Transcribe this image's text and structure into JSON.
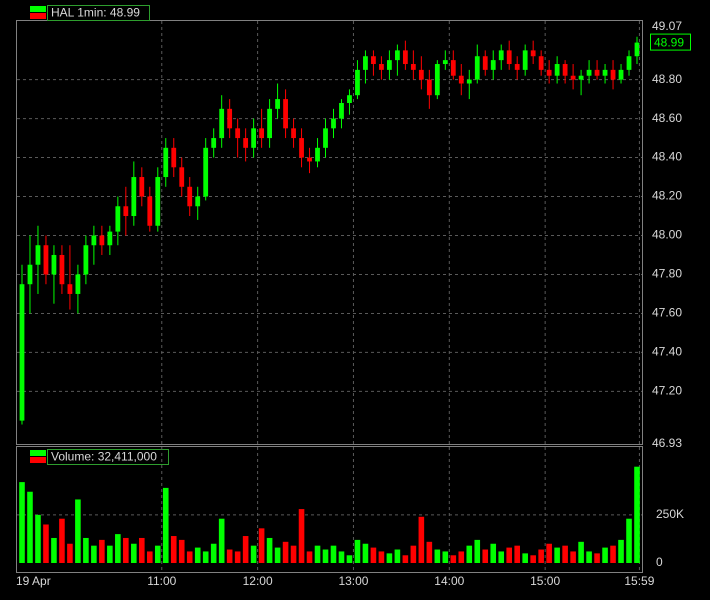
{
  "chart_data": [
    {
      "type": "candlestick",
      "legend": "HAL 1min: 48.99",
      "up_color": "#00ff00",
      "down_color": "#ff0000",
      "open": [
        47.05,
        47.75,
        47.85,
        47.95,
        47.8,
        47.9,
        47.75,
        47.7,
        47.8,
        47.95,
        48.0,
        47.95,
        48.02,
        48.15,
        48.1,
        48.3,
        48.2,
        48.05,
        48.3,
        48.45,
        48.35,
        48.25,
        48.15,
        48.2,
        48.45,
        48.5,
        48.65,
        48.55,
        48.5,
        48.45,
        48.55,
        48.5,
        48.65,
        48.7,
        48.55,
        48.5,
        48.4,
        48.38,
        48.45,
        48.55,
        48.6,
        48.68,
        48.72,
        48.85,
        48.92,
        48.88,
        48.85,
        48.9,
        48.95,
        48.88,
        48.85,
        48.8,
        48.72,
        48.88,
        48.9,
        48.82,
        48.78,
        48.8,
        48.92,
        48.85,
        48.9,
        48.95,
        48.88,
        48.85,
        48.95,
        48.92,
        48.85,
        48.82,
        48.88,
        48.82,
        48.8,
        48.82,
        48.85,
        48.82,
        48.85,
        48.8,
        48.85,
        48.92
      ],
      "high": [
        47.85,
        48.0,
        48.05,
        48.0,
        47.95,
        47.95,
        47.95,
        47.85,
        48.0,
        48.05,
        48.05,
        48.05,
        48.2,
        48.25,
        48.38,
        48.35,
        48.25,
        48.35,
        48.5,
        48.5,
        48.4,
        48.3,
        48.25,
        48.5,
        48.55,
        48.72,
        48.7,
        48.6,
        48.55,
        48.6,
        48.65,
        48.7,
        48.78,
        48.75,
        48.6,
        48.55,
        48.45,
        48.5,
        48.6,
        48.65,
        48.7,
        48.75,
        48.9,
        48.95,
        48.95,
        48.92,
        48.95,
        48.98,
        49.0,
        48.95,
        48.92,
        48.85,
        48.9,
        48.95,
        48.95,
        48.88,
        48.85,
        48.98,
        48.95,
        48.95,
        48.98,
        49.0,
        48.92,
        48.98,
        49.0,
        48.95,
        48.9,
        48.92,
        48.9,
        48.88,
        48.85,
        48.9,
        48.9,
        48.88,
        48.9,
        48.88,
        48.95,
        49.02
      ],
      "low": [
        47.03,
        47.6,
        47.7,
        47.75,
        47.65,
        47.7,
        47.62,
        47.6,
        47.75,
        47.85,
        47.9,
        47.9,
        47.95,
        48.0,
        48.05,
        48.15,
        48.02,
        48.02,
        48.25,
        48.3,
        48.2,
        48.1,
        48.08,
        48.18,
        48.4,
        48.45,
        48.5,
        48.4,
        48.38,
        48.4,
        48.45,
        48.45,
        48.6,
        48.5,
        48.45,
        48.35,
        48.32,
        48.35,
        48.4,
        48.5,
        48.55,
        48.62,
        48.7,
        48.78,
        48.82,
        48.8,
        48.8,
        48.82,
        48.85,
        48.8,
        48.75,
        48.65,
        48.7,
        48.85,
        48.8,
        48.72,
        48.7,
        48.78,
        48.82,
        48.8,
        48.85,
        48.85,
        48.8,
        48.82,
        48.88,
        48.82,
        48.78,
        48.78,
        48.78,
        48.75,
        48.72,
        48.78,
        48.8,
        48.78,
        48.75,
        48.78,
        48.82,
        48.88
      ],
      "close": [
        47.75,
        47.85,
        47.95,
        47.8,
        47.9,
        47.75,
        47.7,
        47.8,
        47.95,
        48.0,
        47.95,
        48.02,
        48.15,
        48.1,
        48.3,
        48.2,
        48.05,
        48.3,
        48.45,
        48.35,
        48.25,
        48.15,
        48.2,
        48.45,
        48.5,
        48.65,
        48.55,
        48.5,
        48.45,
        48.55,
        48.5,
        48.65,
        48.7,
        48.55,
        48.5,
        48.4,
        48.38,
        48.45,
        48.55,
        48.6,
        48.68,
        48.72,
        48.85,
        48.92,
        48.88,
        48.85,
        48.9,
        48.95,
        48.88,
        48.85,
        48.8,
        48.72,
        48.88,
        48.9,
        48.82,
        48.78,
        48.8,
        48.92,
        48.85,
        48.9,
        48.95,
        48.88,
        48.85,
        48.95,
        48.92,
        48.85,
        48.82,
        48.88,
        48.82,
        48.8,
        48.82,
        48.85,
        48.82,
        48.85,
        48.8,
        48.85,
        48.92,
        48.99
      ],
      "ylim": [
        46.93,
        49.07
      ],
      "yticks": [
        46.93,
        {
          "value": 47.2,
          "label": "47.20"
        },
        {
          "value": 47.4,
          "label": "47.40"
        },
        {
          "value": 47.6,
          "label": "47.60"
        },
        {
          "value": 47.8,
          "label": "47.80"
        },
        {
          "value": 48,
          "label": "48.00"
        },
        {
          "value": 48.2,
          "label": "48.20"
        },
        {
          "value": 48.4,
          "label": "48.40"
        },
        {
          "value": 48.6,
          "label": "48.60"
        },
        {
          "value": 48.8,
          "label": "48.80"
        },
        49.07
      ]
    },
    {
      "type": "bar",
      "legend": "Volume: 32,411,000",
      "values": [
        420000,
        370000,
        250000,
        200000,
        130000,
        230000,
        100000,
        330000,
        130000,
        90000,
        120000,
        90000,
        150000,
        130000,
        100000,
        130000,
        60000,
        90000,
        390000,
        140000,
        120000,
        60000,
        80000,
        60000,
        100000,
        230000,
        70000,
        60000,
        140000,
        90000,
        180000,
        130000,
        80000,
        110000,
        90000,
        280000,
        60000,
        90000,
        70000,
        90000,
        60000,
        40000,
        120000,
        100000,
        80000,
        60000,
        50000,
        70000,
        40000,
        90000,
        240000,
        110000,
        70000,
        60000,
        40000,
        60000,
        90000,
        120000,
        70000,
        100000,
        60000,
        80000,
        90000,
        50000,
        40000,
        70000,
        100000,
        80000,
        90000,
        60000,
        110000,
        60000,
        50000,
        80000,
        90000,
        120000,
        230000,
        500000
      ],
      "ylim": [
        0,
        540000
      ],
      "yticks": [
        0,
        {
          "value": 250000,
          "label": "250K"
        }
      ],
      "xticks": [
        {
          "value": 0,
          "label": "19 Apr"
        },
        {
          "value": 18,
          "label": "11:00"
        },
        {
          "value": 30,
          "label": "12:00"
        },
        {
          "value": 42,
          "label": "13:00"
        },
        {
          "value": 54,
          "label": "14:00"
        },
        {
          "value": 66,
          "label": "15:00"
        },
        {
          "value": 77.8,
          "label": "15:59"
        }
      ]
    }
  ]
}
